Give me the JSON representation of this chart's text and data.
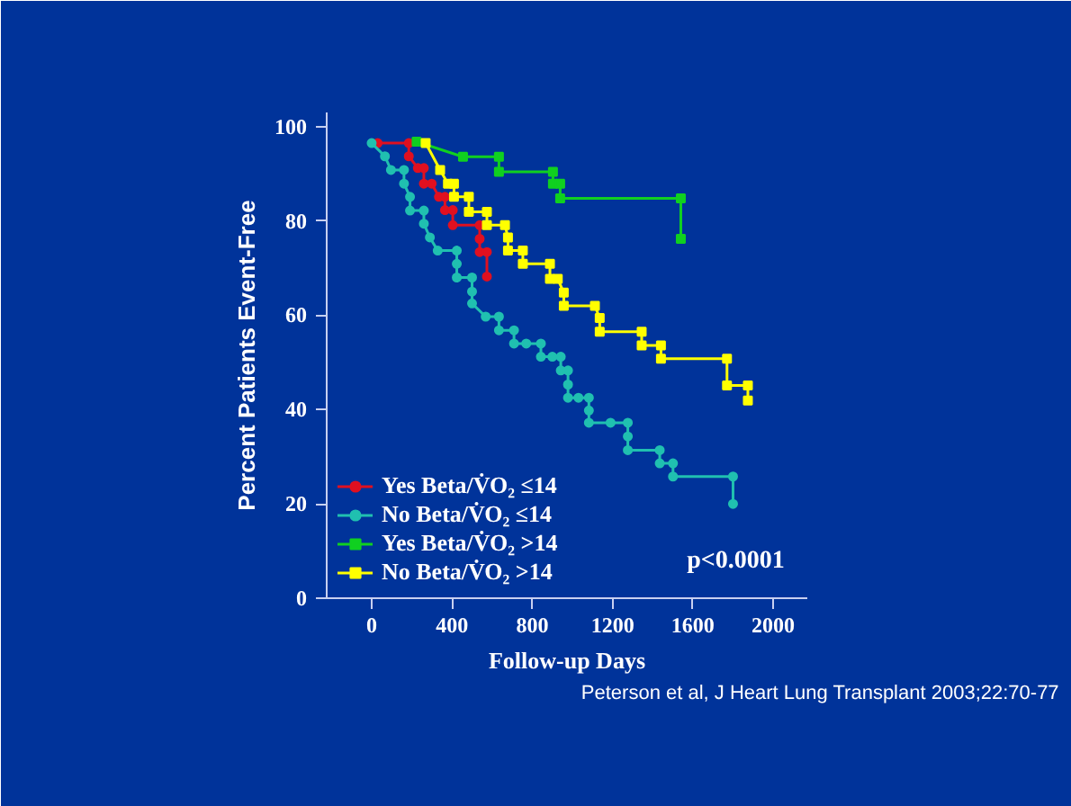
{
  "chart_data": {
    "type": "line",
    "xlabel": "Follow-up Days",
    "ylabel": "Percent Patients Event-Free",
    "xlim": [
      -224,
      2170
    ],
    "ylim": [
      0,
      103
    ],
    "xticks": [
      0,
      400,
      800,
      1200,
      1600,
      2000
    ],
    "yticks": [
      0,
      20,
      40,
      60,
      80,
      100
    ],
    "grid": false,
    "legend": "bottom left",
    "line_style": "solid",
    "series": [
      {
        "name": "Yes Beta/V̇O₂ ≤14",
        "color": "#e01020",
        "marker": "circle",
        "x": [
          30,
          185,
          185,
          230,
          260,
          260,
          299,
          335,
          365,
          365,
          404,
          404,
          538,
          538,
          538,
          574,
          574
        ],
        "values": [
          96.5,
          96.5,
          93.7,
          91.2,
          91.2,
          87.9,
          87.9,
          85.1,
          85.1,
          82.3,
          82.3,
          79.1,
          79.1,
          76.2,
          73.4,
          73.4,
          68.2
        ]
      },
      {
        "name": "No Beta/V̇O₂ ≤14",
        "color": "#20c0b0",
        "marker": "circle",
        "x": [
          0,
          66,
          96,
          161,
          161,
          191,
          191,
          260,
          260,
          290,
          329,
          424,
          424,
          424,
          500,
          500,
          500,
          568,
          634,
          634,
          709,
          709,
          770,
          843,
          843,
          900,
          942,
          942,
          978,
          978,
          978,
          1030,
          1082,
          1082,
          1082,
          1190,
          1276,
          1276,
          1276,
          1435,
          1435,
          1501,
          1501,
          1800,
          1800
        ],
        "values": [
          96.5,
          93.7,
          90.8,
          90.8,
          87.9,
          85.1,
          82.2,
          82.2,
          79.4,
          76.5,
          73.7,
          73.7,
          70.9,
          68,
          68,
          65,
          62.5,
          59.7,
          59.7,
          56.8,
          56.8,
          54,
          54,
          54,
          51.2,
          51.2,
          51.2,
          48.3,
          48.3,
          45.3,
          42.5,
          42.5,
          42.5,
          39.8,
          37.2,
          37.2,
          37.2,
          34.3,
          31.4,
          31.4,
          28.6,
          28.6,
          25.8,
          25.8,
          20
        ]
      },
      {
        "name": "Yes Beta/V̇O₂ >14",
        "color": "#10d020",
        "marker": "square",
        "x": [
          224,
          455,
          634,
          634,
          903,
          903,
          939,
          939,
          1540,
          1540
        ],
        "values": [
          96.8,
          93.6,
          93.6,
          90.4,
          90.4,
          87.9,
          87.9,
          84.8,
          84.8,
          76.2
        ]
      },
      {
        "name": "No Beta/V̇O₂ >14",
        "color": "#ffff00",
        "marker": "square",
        "x": [
          269,
          341,
          380,
          410,
          410,
          484,
          484,
          574,
          574,
          664,
          679,
          679,
          753,
          753,
          888,
          888,
          927,
          957,
          957,
          1112,
          1136,
          1136,
          1345,
          1345,
          1441,
          1441,
          1770,
          1770,
          1874,
          1874
        ],
        "values": [
          96.5,
          90.8,
          87.9,
          87.9,
          85.1,
          85.1,
          81.9,
          81.9,
          79.1,
          79.1,
          76.5,
          73.7,
          73.7,
          70.9,
          70.9,
          67.7,
          67.7,
          64.8,
          62,
          62,
          59.4,
          56.5,
          56.5,
          53.6,
          53.6,
          50.8,
          50.8,
          45.1,
          45.1,
          41.9
        ]
      }
    ],
    "annotations": [
      "p<0.0001",
      "Peterson et al, J Heart Lung Transplant 2003;22:70-77"
    ]
  }
}
